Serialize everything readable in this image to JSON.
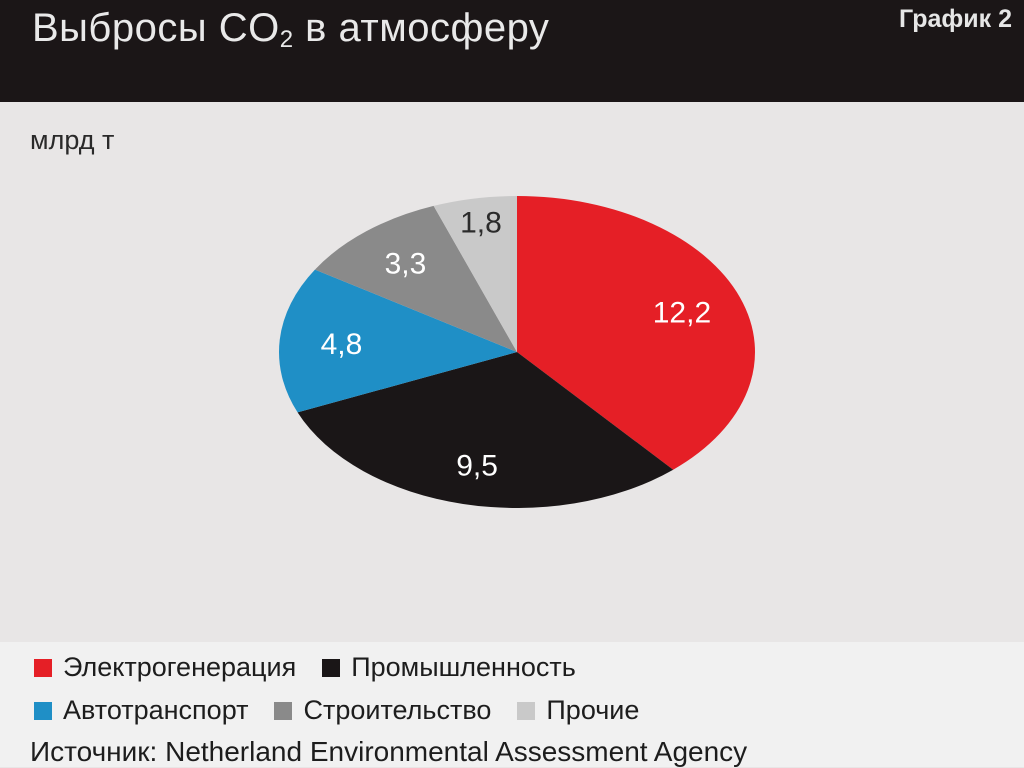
{
  "header": {
    "title_main": "Выбросы CO",
    "title_sub": "2",
    "title_rest": " в атмосферу",
    "graph_number": "График 2"
  },
  "unit_label": "млрд т",
  "chart_data": {
    "type": "pie",
    "unit": "млрд т",
    "slices": [
      {
        "label": "Электрогенерация",
        "value": 12.2,
        "display": "12,2",
        "color": "#e51f26"
      },
      {
        "label": "Промышленность",
        "value": 9.5,
        "display": "9,5",
        "color": "#1a1617"
      },
      {
        "label": "Автотранспорт",
        "value": 4.8,
        "display": "4,8",
        "color": "#1f8fc6"
      },
      {
        "label": "Строительство",
        "value": 3.3,
        "display": "3,3",
        "color": "#8a8a8a"
      },
      {
        "label": "Прочие",
        "value": 1.8,
        "display": "1,8",
        "color": "#c9c9c9"
      }
    ],
    "legend_placement": "bottom"
  },
  "source": "Источник: Netherland Environmental Assessment Agency"
}
